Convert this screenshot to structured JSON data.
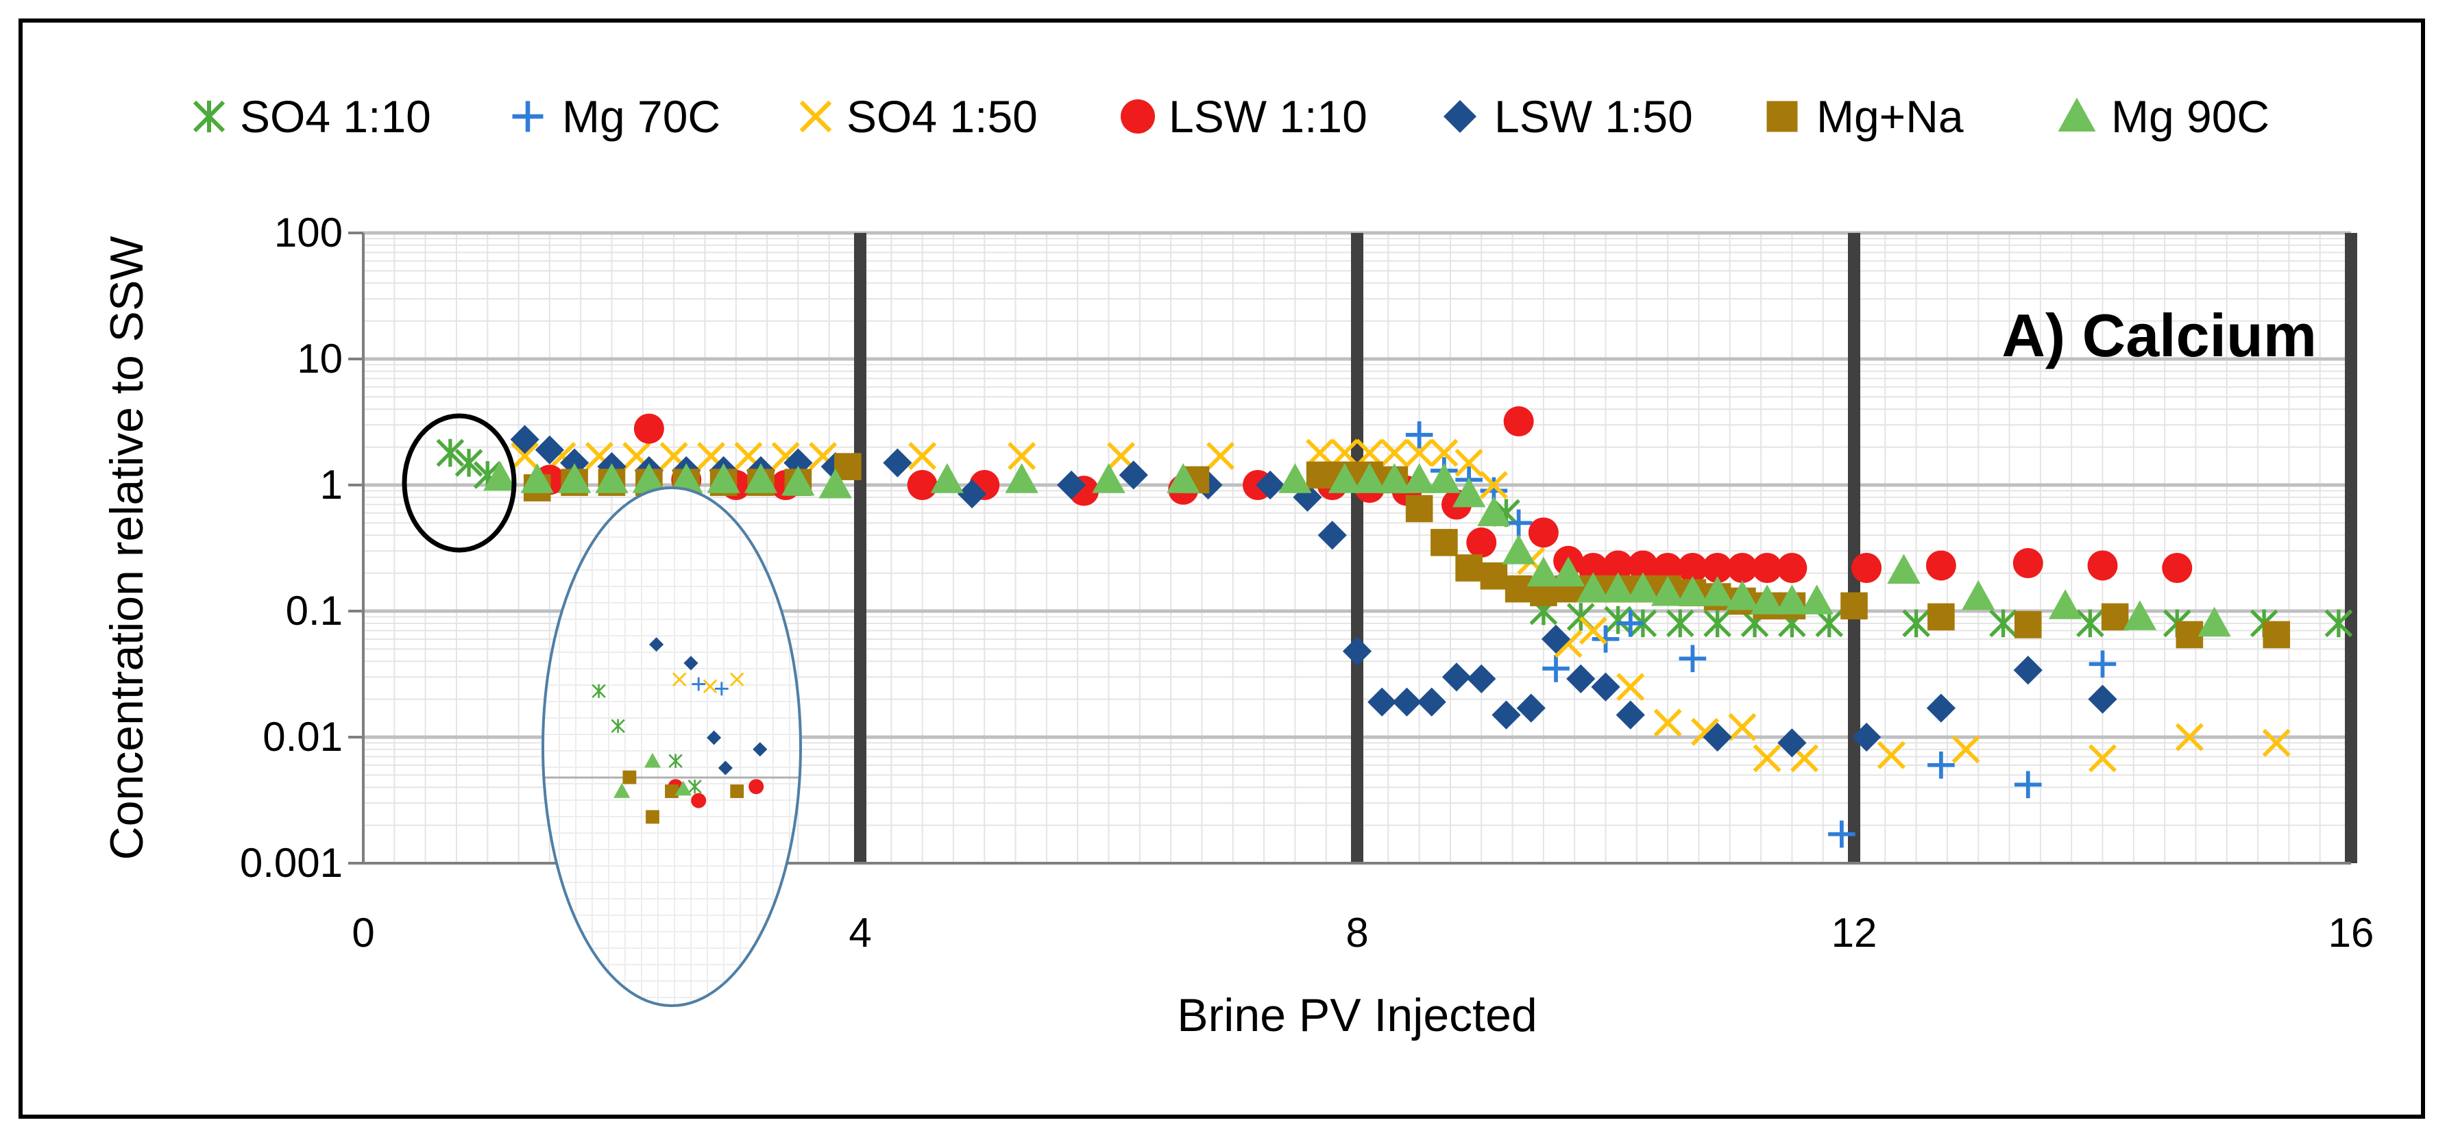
{
  "chart_data": {
    "type": "scatter",
    "title": "A) Calcium",
    "xlabel": "Brine PV Injected",
    "ylabel": "Concentration relative to SSW",
    "xlim": [
      0,
      16
    ],
    "ylim": [
      0.001,
      100
    ],
    "yscale": "log",
    "x_ticks": [
      "0",
      "4",
      "8",
      "12",
      "16"
    ],
    "y_ticks": [
      "0.001",
      "0.01",
      "0.1",
      "1",
      "10",
      "100"
    ],
    "grid": true,
    "legend_position": "top",
    "colors": {
      "SO4 1:10": "#4daa3c",
      "Mg 70C": "#2f7ed8",
      "SO4 1:50": "#ffc20e",
      "LSW 1:10": "#ee1c1c",
      "LSW 1:50": "#1f4e8c",
      "Mg+Na": "#a57a0a",
      "Mg 90C": "#70c15b",
      "stage_lines": "#404040",
      "ellipse": "#4f7fa6"
    },
    "series": [
      {
        "name": "SO4 1:10",
        "marker": "asterisk",
        "points": [
          [
            0.7,
            1.8
          ],
          [
            0.85,
            1.5
          ],
          [
            1.0,
            1.2
          ],
          [
            9.2,
            0.6
          ],
          [
            9.5,
            0.1
          ],
          [
            9.8,
            0.09
          ],
          [
            10.1,
            0.085
          ],
          [
            10.3,
            0.08
          ],
          [
            10.6,
            0.08
          ],
          [
            10.9,
            0.08
          ],
          [
            11.2,
            0.08
          ],
          [
            11.5,
            0.08
          ],
          [
            11.8,
            0.08
          ],
          [
            12.5,
            0.08
          ],
          [
            13.2,
            0.08
          ],
          [
            13.9,
            0.08
          ],
          [
            14.6,
            0.08
          ],
          [
            15.3,
            0.08
          ],
          [
            15.9,
            0.08
          ]
        ]
      },
      {
        "name": "Mg 70C",
        "marker": "plus",
        "points": [
          [
            8.5,
            2.5
          ],
          [
            8.7,
            1.3
          ],
          [
            8.9,
            1.1
          ],
          [
            9.1,
            0.9
          ],
          [
            9.3,
            0.5
          ],
          [
            9.6,
            0.035
          ],
          [
            10.0,
            0.06
          ],
          [
            10.2,
            0.08
          ],
          [
            10.7,
            0.042
          ],
          [
            11.9,
            0.0017
          ],
          [
            12.7,
            0.006
          ],
          [
            13.4,
            0.0042
          ],
          [
            14.0,
            0.038
          ]
        ]
      },
      {
        "name": "SO4 1:50",
        "marker": "cross",
        "points": [
          [
            1.3,
            1.7
          ],
          [
            1.6,
            1.7
          ],
          [
            1.9,
            1.7
          ],
          [
            2.2,
            1.7
          ],
          [
            2.5,
            1.7
          ],
          [
            2.8,
            1.7
          ],
          [
            3.1,
            1.7
          ],
          [
            3.4,
            1.7
          ],
          [
            3.7,
            1.7
          ],
          [
            4.5,
            1.7
          ],
          [
            5.3,
            1.7
          ],
          [
            6.1,
            1.7
          ],
          [
            6.9,
            1.7
          ],
          [
            7.7,
            1.8
          ],
          [
            7.9,
            1.8
          ],
          [
            8.1,
            1.8
          ],
          [
            8.3,
            1.8
          ],
          [
            8.5,
            1.8
          ],
          [
            8.7,
            1.8
          ],
          [
            8.9,
            1.5
          ],
          [
            9.1,
            1.0
          ],
          [
            9.4,
            0.25
          ],
          [
            9.7,
            0.055
          ],
          [
            9.9,
            0.07
          ],
          [
            10.2,
            0.025
          ],
          [
            10.5,
            0.013
          ],
          [
            10.8,
            0.011
          ],
          [
            11.1,
            0.012
          ],
          [
            11.3,
            0.0068
          ],
          [
            11.6,
            0.0068
          ],
          [
            12.3,
            0.0072
          ],
          [
            12.9,
            0.008
          ],
          [
            14.0,
            0.0068
          ],
          [
            14.7,
            0.01
          ],
          [
            15.4,
            0.009
          ]
        ]
      },
      {
        "name": "LSW 1:10",
        "marker": "circle",
        "points": [
          [
            1.5,
            1.1
          ],
          [
            2.3,
            2.8
          ],
          [
            2.6,
            1.1
          ],
          [
            3.0,
            1.0
          ],
          [
            3.4,
            1.0
          ],
          [
            4.5,
            1.0
          ],
          [
            5.0,
            1.0
          ],
          [
            5.8,
            0.9
          ],
          [
            6.6,
            0.92
          ],
          [
            7.2,
            1.0
          ],
          [
            7.8,
            1.0
          ],
          [
            8.1,
            0.95
          ],
          [
            8.4,
            0.9
          ],
          [
            8.8,
            0.7
          ],
          [
            9.0,
            0.35
          ],
          [
            9.3,
            3.2
          ],
          [
            9.5,
            0.42
          ],
          [
            9.7,
            0.25
          ],
          [
            9.9,
            0.22
          ],
          [
            10.1,
            0.23
          ],
          [
            10.3,
            0.23
          ],
          [
            10.5,
            0.22
          ],
          [
            10.7,
            0.22
          ],
          [
            10.9,
            0.22
          ],
          [
            11.1,
            0.22
          ],
          [
            11.3,
            0.22
          ],
          [
            11.5,
            0.22
          ],
          [
            12.1,
            0.22
          ],
          [
            12.7,
            0.23
          ],
          [
            13.4,
            0.24
          ],
          [
            14.0,
            0.23
          ],
          [
            14.6,
            0.22
          ]
        ]
      },
      {
        "name": "LSW 1:50",
        "marker": "diamond",
        "points": [
          [
            1.3,
            2.3
          ],
          [
            1.5,
            1.9
          ],
          [
            1.7,
            1.5
          ],
          [
            2.0,
            1.4
          ],
          [
            2.3,
            1.3
          ],
          [
            2.6,
            1.3
          ],
          [
            2.9,
            1.3
          ],
          [
            3.2,
            1.3
          ],
          [
            3.5,
            1.5
          ],
          [
            3.8,
            1.4
          ],
          [
            4.3,
            1.5
          ],
          [
            4.9,
            0.85
          ],
          [
            5.7,
            1.0
          ],
          [
            6.2,
            1.2
          ],
          [
            6.8,
            1.0
          ],
          [
            7.3,
            1.0
          ],
          [
            7.6,
            0.8
          ],
          [
            7.8,
            0.4
          ],
          [
            8.0,
            0.048
          ],
          [
            8.2,
            0.019
          ],
          [
            8.4,
            0.019
          ],
          [
            8.6,
            0.019
          ],
          [
            8.8,
            0.03
          ],
          [
            9.0,
            0.029
          ],
          [
            9.2,
            0.015
          ],
          [
            9.4,
            0.017
          ],
          [
            9.6,
            0.06
          ],
          [
            9.8,
            0.029
          ],
          [
            10.0,
            0.025
          ],
          [
            10.2,
            0.015
          ],
          [
            10.9,
            0.01
          ],
          [
            11.5,
            0.009
          ],
          [
            12.1,
            0.01
          ],
          [
            12.7,
            0.017
          ],
          [
            13.4,
            0.034
          ],
          [
            14.0,
            0.02
          ]
        ]
      },
      {
        "name": "Mg+Na",
        "marker": "square",
        "points": [
          [
            1.4,
            0.95
          ],
          [
            1.7,
            1.05
          ],
          [
            2.0,
            1.05
          ],
          [
            2.3,
            1.05
          ],
          [
            2.6,
            1.05
          ],
          [
            2.9,
            1.05
          ],
          [
            3.2,
            1.05
          ],
          [
            3.5,
            1.05
          ],
          [
            3.9,
            1.4
          ],
          [
            6.7,
            1.1
          ],
          [
            7.7,
            1.2
          ],
          [
            7.9,
            1.2
          ],
          [
            8.1,
            1.2
          ],
          [
            8.3,
            1.1
          ],
          [
            8.5,
            0.65
          ],
          [
            8.7,
            0.35
          ],
          [
            8.9,
            0.22
          ],
          [
            9.1,
            0.19
          ],
          [
            9.3,
            0.15
          ],
          [
            9.5,
            0.14
          ],
          [
            9.7,
            0.15
          ],
          [
            9.9,
            0.15
          ],
          [
            10.1,
            0.15
          ],
          [
            10.3,
            0.15
          ],
          [
            10.5,
            0.15
          ],
          [
            10.7,
            0.14
          ],
          [
            10.9,
            0.13
          ],
          [
            11.1,
            0.12
          ],
          [
            11.3,
            0.11
          ],
          [
            11.5,
            0.11
          ],
          [
            12.0,
            0.11
          ],
          [
            12.7,
            0.09
          ],
          [
            13.4,
            0.078
          ],
          [
            14.1,
            0.09
          ],
          [
            14.7,
            0.065
          ],
          [
            15.4,
            0.065
          ]
        ]
      },
      {
        "name": "Mg 90C",
        "marker": "triangle",
        "points": [
          [
            1.1,
            1.15
          ],
          [
            1.4,
            1.1
          ],
          [
            1.7,
            1.1
          ],
          [
            2.0,
            1.1
          ],
          [
            2.3,
            1.1
          ],
          [
            2.6,
            1.1
          ],
          [
            2.9,
            1.1
          ],
          [
            3.2,
            1.1
          ],
          [
            3.5,
            1.05
          ],
          [
            3.8,
            1.0
          ],
          [
            4.7,
            1.1
          ],
          [
            5.3,
            1.1
          ],
          [
            6.0,
            1.1
          ],
          [
            6.6,
            1.1
          ],
          [
            7.5,
            1.1
          ],
          [
            7.9,
            1.1
          ],
          [
            8.1,
            1.1
          ],
          [
            8.3,
            1.1
          ],
          [
            8.5,
            1.1
          ],
          [
            8.7,
            1.1
          ],
          [
            8.9,
            0.85
          ],
          [
            9.1,
            0.6
          ],
          [
            9.3,
            0.3
          ],
          [
            9.5,
            0.2
          ],
          [
            9.7,
            0.2
          ],
          [
            9.9,
            0.15
          ],
          [
            10.1,
            0.15
          ],
          [
            10.3,
            0.15
          ],
          [
            10.5,
            0.14
          ],
          [
            10.7,
            0.14
          ],
          [
            10.9,
            0.14
          ],
          [
            11.1,
            0.13
          ],
          [
            11.3,
            0.12
          ],
          [
            11.5,
            0.12
          ],
          [
            11.7,
            0.12
          ],
          [
            12.4,
            0.21
          ],
          [
            13.0,
            0.13
          ],
          [
            13.7,
            0.11
          ],
          [
            14.3,
            0.09
          ],
          [
            14.9,
            0.08
          ]
        ]
      }
    ],
    "inset": {
      "description_visible": false,
      "points": [
        {
          "series": "SO4 1:10",
          "x": 0.55,
          "y": 0.85
        },
        {
          "series": "SO4 1:10",
          "x": 0.8,
          "y": 0.7
        },
        {
          "series": "SO4 1:10",
          "x": 1.55,
          "y": 0.55
        },
        {
          "series": "SO4 1:10",
          "x": 1.8,
          "y": 0.44
        },
        {
          "series": "SO4 1:50",
          "x": 1.6,
          "y": 0.9
        },
        {
          "series": "SO4 1:50",
          "x": 2.0,
          "y": 0.87
        },
        {
          "series": "SO4 1:50",
          "x": 2.35,
          "y": 0.9
        },
        {
          "series": "Mg 70C",
          "x": 1.85,
          "y": 0.88
        },
        {
          "series": "Mg 70C",
          "x": 2.15,
          "y": 0.86
        },
        {
          "series": "LSW 1:50",
          "x": 1.3,
          "y": 1.05
        },
        {
          "series": "LSW 1:50",
          "x": 1.75,
          "y": 0.97
        },
        {
          "series": "LSW 1:50",
          "x": 2.05,
          "y": 0.65
        },
        {
          "series": "LSW 1:50",
          "x": 2.2,
          "y": 0.52
        },
        {
          "series": "LSW 1:50",
          "x": 2.65,
          "y": 0.6
        },
        {
          "series": "LSW 1:10",
          "x": 1.55,
          "y": 0.44
        },
        {
          "series": "LSW 1:10",
          "x": 1.85,
          "y": 0.38
        },
        {
          "series": "LSW 1:10",
          "x": 2.6,
          "y": 0.44
        },
        {
          "series": "Mg+Na",
          "x": 0.95,
          "y": 0.48
        },
        {
          "series": "Mg+Na",
          "x": 1.5,
          "y": 0.42
        },
        {
          "series": "Mg+Na",
          "x": 2.35,
          "y": 0.42
        },
        {
          "series": "Mg+Na",
          "x": 1.25,
          "y": 0.31
        },
        {
          "series": "Mg 90C",
          "x": 0.85,
          "y": 0.42
        },
        {
          "series": "Mg 90C",
          "x": 1.25,
          "y": 0.55
        },
        {
          "series": "Mg 90C",
          "x": 1.65,
          "y": 0.43
        }
      ]
    }
  }
}
